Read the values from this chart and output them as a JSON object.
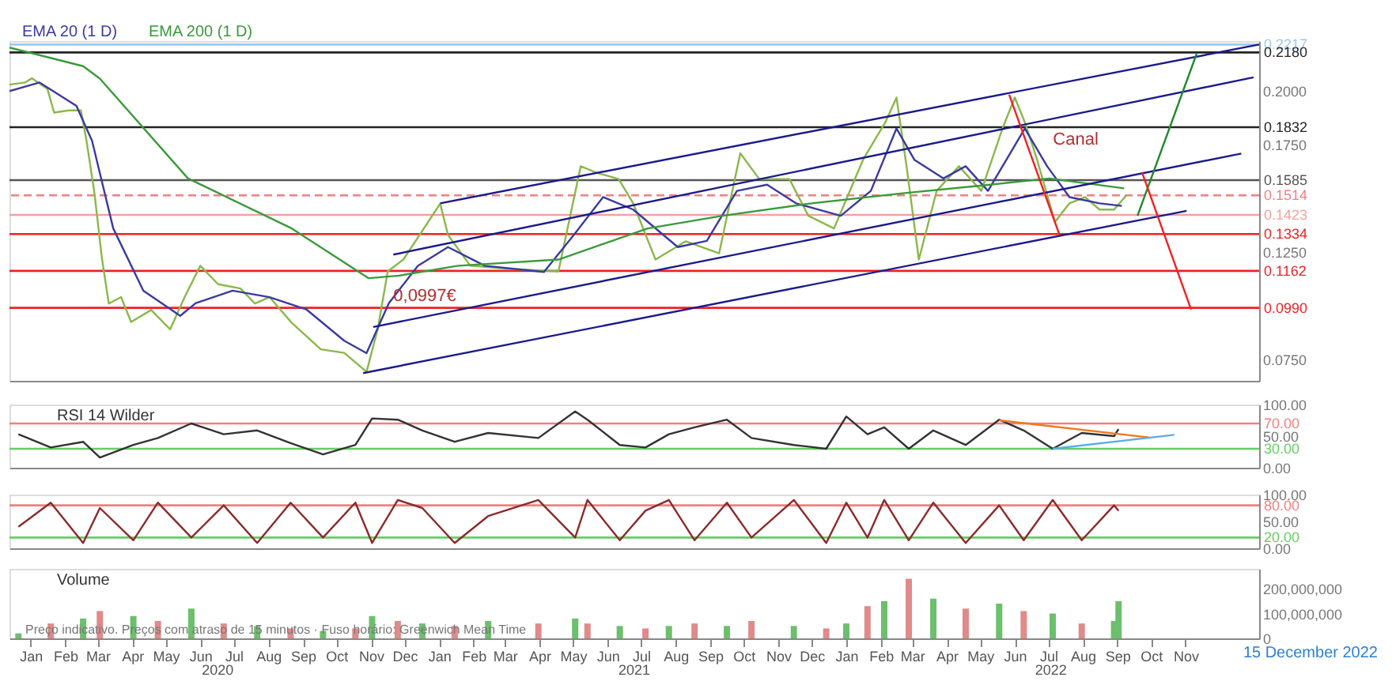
{
  "chart_data": [
    {
      "type": "line",
      "xlim": [
        "2019-12-13",
        "2023-01-06"
      ],
      "ylim": [
        0.065,
        0.2233
      ],
      "tick_labels": "y",
      "legend": "top left",
      "yticks": [
        {
          "value": 0.075,
          "label": "0.0750"
        },
        {
          "value": 0.125,
          "label": "0.1250"
        },
        {
          "value": 0.175,
          "label": "0.1750"
        },
        {
          "value": 0.2,
          "label": "0.2000"
        }
      ],
      "series": [
        {
          "color": "#8ab84a",
          "x": [
            "2019-12-13",
            "2019-12-27",
            "2020-01-02",
            "2020-01-16",
            "2020-01-22",
            "2020-02-04",
            "2020-02-15",
            "2020-02-20",
            "2020-02-27",
            "2020-03-05",
            "2020-03-11",
            "2020-03-22",
            "2020-03-31",
            "2020-04-18",
            "2020-05-05",
            "2020-05-18",
            "2020-06-01",
            "2020-06-17",
            "2020-07-07",
            "2020-07-20",
            "2020-08-02",
            "2020-08-22",
            "2020-09-17",
            "2020-10-08",
            "2020-10-28",
            "2020-11-07",
            "2020-11-16",
            "2020-11-30",
            "2021-01-02",
            "2021-01-09",
            "2021-01-29",
            "2021-03-10",
            "2021-04-18",
            "2021-05-08",
            "2021-05-22",
            "2021-06-11",
            "2021-06-24",
            "2021-07-14",
            "2021-08-10",
            "2021-09-09",
            "2021-09-28",
            "2021-10-15",
            "2021-11-11",
            "2021-11-28",
            "2021-12-21",
            "2022-01-16",
            "2022-02-05",
            "2022-02-15",
            "2022-02-24",
            "2022-03-07",
            "2022-03-23",
            "2022-04-12",
            "2022-05-02",
            "2022-05-21",
            "2022-06-01",
            "2022-06-10",
            "2022-06-21",
            "2022-07-07",
            "2022-07-20",
            "2022-08-03",
            "2022-08-16",
            "2022-08-29",
            "2022-09-09"
          ],
          "values": [
            0.203,
            0.204,
            0.206,
            0.201,
            0.19,
            0.191,
            0.191,
            0.177,
            0.153,
            0.1215,
            0.101,
            0.104,
            0.0924,
            0.098,
            0.089,
            0.104,
            0.1186,
            0.11,
            0.108,
            0.101,
            0.104,
            0.092,
            0.0797,
            0.078,
            0.0692,
            0.089,
            0.116,
            0.1215,
            0.1475,
            0.133,
            0.1186,
            0.117,
            0.116,
            0.165,
            0.162,
            0.159,
            0.1477,
            0.1215,
            0.13,
            0.1244,
            0.171,
            0.159,
            0.159,
            0.1419,
            0.136,
            0.168,
            0.1855,
            0.197,
            0.165,
            0.1215,
            0.1535,
            0.165,
            0.1535,
            0.1826,
            0.197,
            0.1855,
            0.168,
            0.139,
            0.1477,
            0.1506,
            0.1448,
            0.1448,
            0.1514
          ]
        },
        {
          "name": "EMA 20 (1 D)",
          "color": "#3a3aa0",
          "x": [
            "2019-12-13",
            "2020-01-09",
            "2020-02-11",
            "2020-02-25",
            "2020-03-15",
            "2020-04-11",
            "2020-05-14",
            "2020-05-28",
            "2020-06-30",
            "2020-08-02",
            "2020-09-04",
            "2020-10-08",
            "2020-10-28",
            "2020-11-17",
            "2020-12-13",
            "2021-01-09",
            "2021-02-11",
            "2021-04-05",
            "2021-05-02",
            "2021-05-28",
            "2021-06-24",
            "2021-08-03",
            "2021-08-29",
            "2021-09-25",
            "2021-10-22",
            "2021-11-17",
            "2021-12-27",
            "2022-01-23",
            "2022-02-15",
            "2022-03-03",
            "2022-03-29",
            "2022-04-18",
            "2022-05-08",
            "2022-06-10",
            "2022-06-30",
            "2022-07-20",
            "2022-08-16",
            "2022-09-05"
          ],
          "values": [
            0.2,
            0.204,
            0.1931,
            0.1768,
            0.136,
            0.107,
            0.0953,
            0.1012,
            0.107,
            0.104,
            0.0983,
            0.0837,
            0.0779,
            0.1012,
            0.1186,
            0.1273,
            0.1186,
            0.1157,
            0.1331,
            0.1506,
            0.1448,
            0.1273,
            0.1302,
            0.1535,
            0.1564,
            0.1477,
            0.1419,
            0.1535,
            0.1826,
            0.168,
            0.1593,
            0.165,
            0.1535,
            0.1826,
            0.165,
            0.1506,
            0.1477,
            0.1465
          ]
        },
        {
          "name": "EMA 200 (1 D)",
          "color": "#3a9a3a",
          "x": [
            "2019-12-13",
            "2020-02-17",
            "2020-03-03",
            "2020-05-21",
            "2020-08-22",
            "2020-10-30",
            "2020-11-26",
            "2021-01-18",
            "2021-04-18",
            "2021-07-07",
            "2021-09-12",
            "2021-12-01",
            "2022-02-19",
            "2022-05-10",
            "2022-07-02",
            "2022-09-07"
          ],
          "values": [
            0.2203,
            0.2116,
            0.2058,
            0.1593,
            0.136,
            0.1128,
            0.114,
            0.1186,
            0.1215,
            0.136,
            0.1419,
            0.1477,
            0.1523,
            0.1564,
            0.1593,
            0.1547
          ]
        },
        {
          "color": "#1a1a8c",
          "x": [
            "2020-10-25",
            "2022-11-02"
          ],
          "values": [
            0.0686,
            0.1442
          ]
        },
        {
          "color": "#1a1a8c",
          "x": [
            "2020-11-03",
            "2022-12-21"
          ],
          "values": [
            0.0901,
            0.1709
          ]
        },
        {
          "color": "#1a1a8c",
          "x": [
            "2020-11-21",
            "2023-01-01"
          ],
          "values": [
            0.1238,
            0.2064
          ]
        },
        {
          "color": "#1a1a8c",
          "x": [
            "2021-01-02",
            "2023-01-06"
          ],
          "values": [
            0.1477,
            0.2217
          ]
        },
        {
          "color": "#ee2222",
          "x": [
            "2022-05-27",
            "2022-07-11"
          ],
          "values": [
            0.1983,
            0.1331
          ]
        },
        {
          "color": "#22882e",
          "x": [
            "2022-09-19",
            "2022-11-11"
          ],
          "values": [
            0.1419,
            0.2174
          ]
        },
        {
          "color": "#ee2222",
          "x": [
            "2022-09-23",
            "2022-11-06"
          ],
          "values": [
            0.1622,
            0.0983
          ]
        }
      ],
      "ref_lines": [
        {
          "axis": "y",
          "value": 0.2217,
          "label": "0.2217",
          "color": "#9ec9ea"
        },
        {
          "axis": "y",
          "value": 0.218,
          "label": "0.2180",
          "color": "#222222"
        },
        {
          "axis": "y",
          "value": 0.1832,
          "label": "0.1832",
          "color": "#222222"
        },
        {
          "axis": "y",
          "value": 0.1585,
          "label": "0.1585",
          "color": "#555555"
        },
        {
          "axis": "y",
          "value": 0.1514,
          "label": "0.1514",
          "color": "#f08080",
          "line_style": "dashed"
        },
        {
          "axis": "y",
          "value": 0.1423,
          "label": "0.1423",
          "color": "#f4a0a0"
        },
        {
          "axis": "y",
          "value": 0.1334,
          "label": "0.1334",
          "color": "#ee2222"
        },
        {
          "axis": "y",
          "value": 0.1162,
          "label": "0.1162",
          "color": "#ee2222"
        },
        {
          "axis": "y",
          "value": 0.099,
          "label": "0.0990",
          "color": "#ee2222"
        }
      ],
      "annotations": [
        "Canal",
        {
          "text": "0,0997€",
          "x": "2020-11-21",
          "y": 0.0994
        }
      ]
    },
    {
      "type": "line",
      "title": "RSI 14 Wilder",
      "xlim": [
        "2019-12-13",
        "2023-01-06"
      ],
      "ylim": [
        0,
        100
      ],
      "tick_labels": "y",
      "yticks": [
        {
          "value": 0,
          "label": "0.00"
        },
        {
          "value": 50,
          "label": "50.00"
        },
        {
          "value": 100,
          "label": "100.00"
        }
      ],
      "series": [
        {
          "color": "#333333",
          "x": [
            "2019-12-21",
            "2020-01-19",
            "2020-02-17",
            "2020-03-03",
            "2020-04-02",
            "2020-04-24",
            "2020-05-24",
            "2020-06-22",
            "2020-07-22",
            "2020-08-21",
            "2020-09-19",
            "2020-10-18",
            "2020-11-02",
            "2020-11-25",
            "2020-12-17",
            "2021-01-15",
            "2021-02-14",
            "2021-03-31",
            "2021-05-03",
            "2021-05-14",
            "2021-06-12",
            "2021-07-05",
            "2021-07-26",
            "2021-08-18",
            "2021-09-16",
            "2021-10-08",
            "2021-11-15",
            "2021-12-14",
            "2022-01-01",
            "2022-01-20",
            "2022-02-04",
            "2022-02-26",
            "2022-03-20",
            "2022-04-18",
            "2022-05-18",
            "2022-06-09",
            "2022-07-05",
            "2022-07-31",
            "2022-08-29",
            "2022-09-02"
          ],
          "values": [
            53,
            32,
            41,
            16,
            36,
            47,
            70,
            53,
            59,
            39,
            21,
            36,
            78,
            76,
            59,
            41,
            55,
            47,
            89,
            76,
            36,
            32,
            53,
            64,
            76,
            47,
            36,
            30,
            81,
            53,
            64,
            30,
            59,
            36,
            76,
            59,
            30,
            55,
            50,
            61
          ]
        },
        {
          "color": "#f07820",
          "x": [
            "2022-05-18",
            "2022-09-29"
          ],
          "values": [
            75,
            48
          ]
        },
        {
          "color": "#5aaee8",
          "x": [
            "2022-07-05",
            "2022-10-22"
          ],
          "values": [
            30,
            52
          ]
        }
      ],
      "ref_lines": [
        {
          "axis": "y",
          "value": 70,
          "label": "70.00",
          "color": "#f08080"
        },
        {
          "axis": "y",
          "value": 30,
          "label": "30.00",
          "color": "#66cc66"
        }
      ]
    },
    {
      "type": "line",
      "xlim": [
        "2019-12-13",
        "2023-01-06"
      ],
      "ylim": [
        0,
        100
      ],
      "tick_labels": "y",
      "yticks": [
        {
          "value": 0,
          "label": "0.00"
        },
        {
          "value": 50,
          "label": "50.00"
        },
        {
          "value": 100,
          "label": "100.00"
        }
      ],
      "series": [
        {
          "color": "#8b2a2a",
          "x": [
            "2019-12-21",
            "2020-01-19",
            "2020-02-17",
            "2020-03-03",
            "2020-04-02",
            "2020-04-24",
            "2020-05-24",
            "2020-06-22",
            "2020-07-22",
            "2020-08-21",
            "2020-09-19",
            "2020-10-18",
            "2020-11-02",
            "2020-11-25",
            "2020-12-17",
            "2021-01-15",
            "2021-02-14",
            "2021-03-31",
            "2021-05-03",
            "2021-05-14",
            "2021-06-12",
            "2021-07-05",
            "2021-07-26",
            "2021-08-18",
            "2021-09-16",
            "2021-10-08",
            "2021-11-15",
            "2021-12-14",
            "2022-01-01",
            "2022-01-20",
            "2022-02-04",
            "2022-02-26",
            "2022-03-20",
            "2022-04-18",
            "2022-05-18",
            "2022-06-09",
            "2022-07-05",
            "2022-07-31",
            "2022-08-29",
            "2022-09-02"
          ],
          "values": [
            40,
            85,
            10,
            75,
            15,
            85,
            20,
            80,
            10,
            85,
            20,
            85,
            10,
            90,
            75,
            10,
            60,
            90,
            20,
            90,
            15,
            70,
            90,
            15,
            85,
            20,
            90,
            10,
            85,
            20,
            90,
            15,
            85,
            10,
            80,
            15,
            90,
            15,
            80,
            70
          ]
        }
      ],
      "ref_lines": [
        {
          "axis": "y",
          "value": 80,
          "label": "80.00",
          "color": "#f08080"
        },
        {
          "axis": "y",
          "value": 20,
          "label": "20.00",
          "color": "#66cc66"
        }
      ]
    },
    {
      "type": "bar",
      "title": "Volume",
      "xlim": [
        "2019-12-13",
        "2023-01-06"
      ],
      "ylim": [
        0,
        280000000
      ],
      "yticks": [
        {
          "value": 0,
          "label": "0"
        },
        {
          "value": 100000000,
          "label": "100,000,000"
        },
        {
          "value": 200000000,
          "label": "200,000,000"
        }
      ],
      "xticks": [
        {
          "value": "2020-01-01",
          "label": "Jan"
        },
        {
          "value": "2020-02-01",
          "label": "Feb"
        },
        {
          "value": "2020-03-01",
          "label": "Mar"
        },
        {
          "value": "2020-04-01",
          "label": "Apr"
        },
        {
          "value": "2020-05-01",
          "label": "May"
        },
        {
          "value": "2020-06-01",
          "label": "Jun"
        },
        {
          "value": "2020-07-01",
          "label": "Jul"
        },
        {
          "value": "2020-08-01",
          "label": "Aug"
        },
        {
          "value": "2020-09-01",
          "label": "Sep"
        },
        {
          "value": "2020-10-01",
          "label": "Oct"
        },
        {
          "value": "2020-11-01",
          "label": "Nov"
        },
        {
          "value": "2020-12-01",
          "label": "Dec"
        },
        {
          "value": "2021-01-01",
          "label": "Jan"
        },
        {
          "value": "2021-02-01",
          "label": "Feb"
        },
        {
          "value": "2021-03-01",
          "label": "Mar"
        },
        {
          "value": "2021-04-01",
          "label": "Apr"
        },
        {
          "value": "2021-05-01",
          "label": "May"
        },
        {
          "value": "2021-06-01",
          "label": "Jun"
        },
        {
          "value": "2021-07-01",
          "label": "Jul"
        },
        {
          "value": "2021-08-01",
          "label": "Aug"
        },
        {
          "value": "2021-09-01",
          "label": "Sep"
        },
        {
          "value": "2021-10-01",
          "label": "Oct"
        },
        {
          "value": "2021-11-01",
          "label": "Nov"
        },
        {
          "value": "2021-12-01",
          "label": "Dec"
        },
        {
          "value": "2022-01-01",
          "label": "Jan"
        },
        {
          "value": "2022-02-01",
          "label": "Feb"
        },
        {
          "value": "2022-03-01",
          "label": "Mar"
        },
        {
          "value": "2022-04-01",
          "label": "Apr"
        },
        {
          "value": "2022-05-01",
          "label": "May"
        },
        {
          "value": "2022-06-01",
          "label": "Jun"
        },
        {
          "value": "2022-07-01",
          "label": "Jul"
        },
        {
          "value": "2022-08-01",
          "label": "Aug"
        },
        {
          "value": "2022-09-01",
          "label": "Sep"
        },
        {
          "value": "2022-10-01",
          "label": "Oct"
        },
        {
          "value": "2022-11-01",
          "label": "Nov"
        }
      ],
      "x": [
        "2019-12-21",
        "2020-01-19",
        "2020-02-17",
        "2020-03-03",
        "2020-04-02",
        "2020-04-24",
        "2020-05-24",
        "2020-06-22",
        "2020-07-22",
        "2020-08-21",
        "2020-09-19",
        "2020-10-18",
        "2020-11-02",
        "2020-11-25",
        "2020-12-17",
        "2021-01-15",
        "2021-02-14",
        "2021-03-31",
        "2021-05-03",
        "2021-05-14",
        "2021-06-12",
        "2021-07-05",
        "2021-07-26",
        "2021-08-18",
        "2021-09-16",
        "2021-10-08",
        "2021-11-15",
        "2021-12-14",
        "2022-01-01",
        "2022-01-20",
        "2022-02-04",
        "2022-02-26",
        "2022-03-20",
        "2022-04-18",
        "2022-05-18",
        "2022-06-09",
        "2022-07-05",
        "2022-07-31",
        "2022-08-29",
        "2022-09-02"
      ],
      "values": [
        20000000,
        60000000,
        80000000,
        110000000,
        90000000,
        70000000,
        120000000,
        60000000,
        50000000,
        40000000,
        30000000,
        40000000,
        90000000,
        70000000,
        60000000,
        50000000,
        70000000,
        60000000,
        80000000,
        60000000,
        50000000,
        40000000,
        50000000,
        60000000,
        50000000,
        70000000,
        50000000,
        40000000,
        60000000,
        130000000,
        150000000,
        240000000,
        160000000,
        120000000,
        140000000,
        110000000,
        100000000,
        60000000,
        70000000,
        150000000
      ],
      "colors": [
        "#6cbf6c",
        "#e08a8a",
        "#6cbf6c",
        "#e08a8a",
        "#6cbf6c",
        "#e08a8a",
        "#6cbf6c",
        "#e08a8a",
        "#6cbf6c",
        "#e08a8a",
        "#6cbf6c",
        "#e08a8a",
        "#6cbf6c",
        "#e08a8a",
        "#6cbf6c",
        "#e08a8a",
        "#6cbf6c",
        "#e08a8a",
        "#6cbf6c",
        "#e08a8a",
        "#6cbf6c",
        "#e08a8a",
        "#6cbf6c",
        "#e08a8a",
        "#6cbf6c",
        "#e08a8a",
        "#6cbf6c",
        "#e08a8a",
        "#6cbf6c",
        "#e08a8a",
        "#6cbf6c",
        "#e08a8a",
        "#6cbf6c",
        "#e08a8a",
        "#6cbf6c",
        "#e08a8a",
        "#6cbf6c",
        "#e08a8a",
        "#6cbf6c",
        "#6cbf6c"
      ],
      "annotations": [
        "Preço indicativo. Preços com atraso de 15 minutos · Fuso horário: Greenwich Mean Time",
        "15 December 2022",
        "2020",
        "2021",
        "2022"
      ]
    }
  ]
}
